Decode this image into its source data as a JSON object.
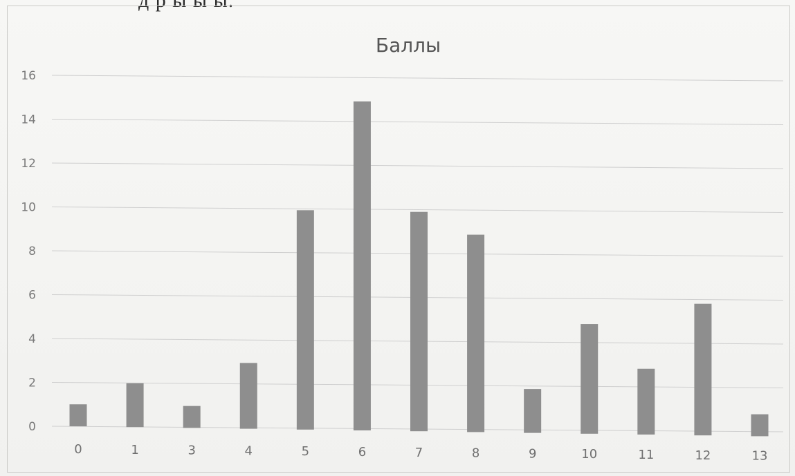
{
  "page": {
    "top_text": "д  р  ы  ы  ы."
  },
  "chart_data": {
    "type": "bar",
    "title": "Баллы",
    "xlabel": "",
    "ylabel": "",
    "categories": [
      "0",
      "1",
      "3",
      "4",
      "5",
      "6",
      "7",
      "8",
      "9",
      "10",
      "11",
      "12",
      "13"
    ],
    "values": [
      1,
      2,
      1,
      3,
      10,
      15,
      10,
      9,
      2,
      5,
      3,
      6,
      1
    ],
    "ylim": [
      0,
      16
    ],
    "yticks": [
      "0",
      "2",
      "4",
      "6",
      "8",
      "10",
      "12",
      "14",
      "16"
    ],
    "grid": true,
    "legend": "none",
    "bar_color": "#8e8e8e",
    "grid_color": "#cfcfcf"
  }
}
